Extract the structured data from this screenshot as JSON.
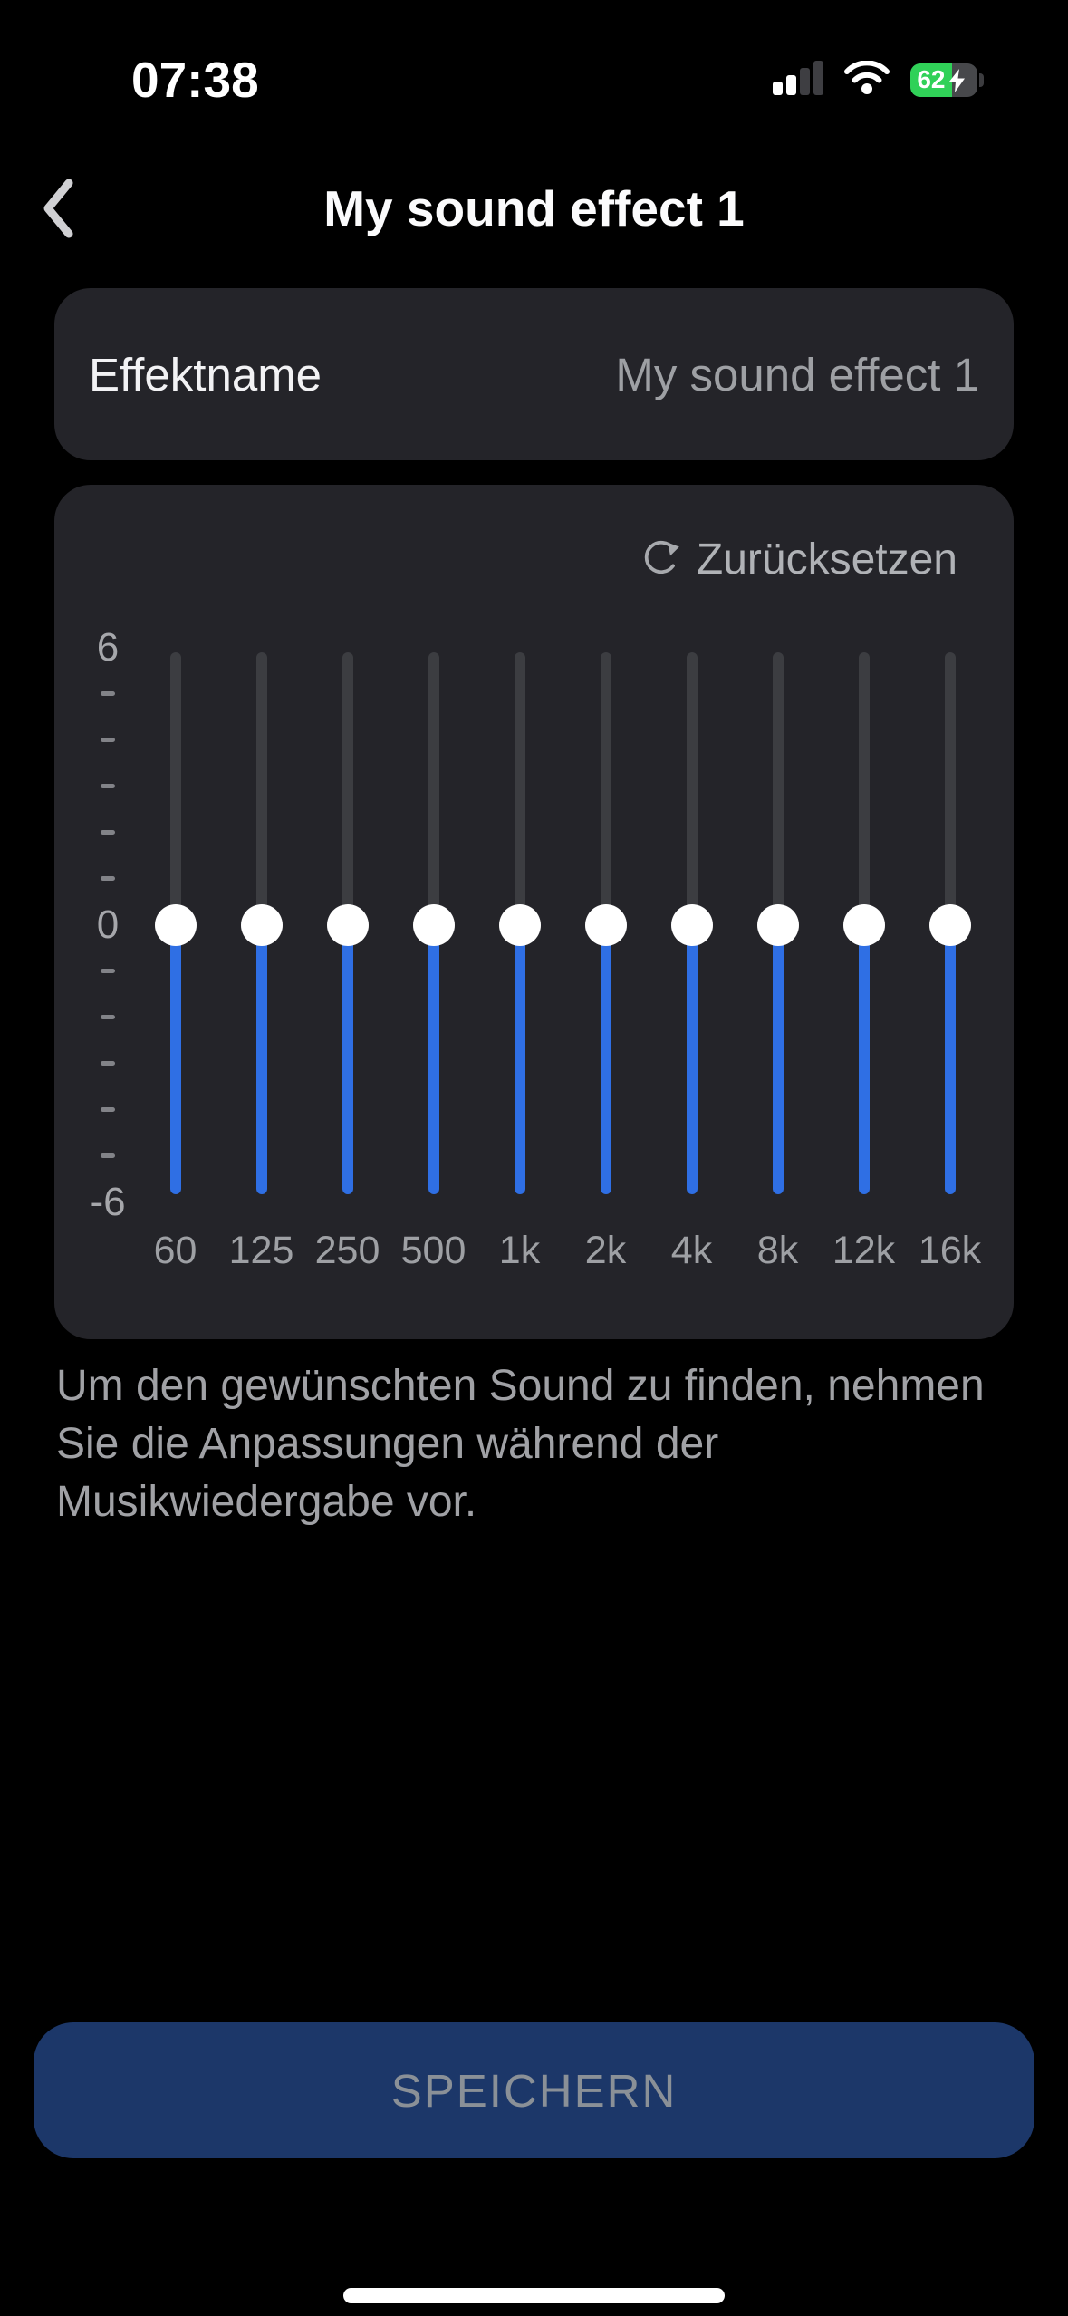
{
  "status_bar": {
    "time": "07:38",
    "signal_bars_active": 2,
    "signal_bars_total": 4,
    "wifi": "full",
    "battery_percent": "62",
    "battery_charging": true
  },
  "header": {
    "title": "My sound effect 1"
  },
  "effect_name_row": {
    "label": "Effektname",
    "value": "My sound effect 1"
  },
  "equalizer": {
    "reset_label": "Zurücksetzen",
    "scale": {
      "max_label": "6",
      "mid_label": "0",
      "min_label": "-6",
      "max": 6,
      "min": -6
    },
    "bands": [
      {
        "freq": "60",
        "value": 0
      },
      {
        "freq": "125",
        "value": 0
      },
      {
        "freq": "250",
        "value": 0
      },
      {
        "freq": "500",
        "value": 0
      },
      {
        "freq": "1k",
        "value": 0
      },
      {
        "freq": "2k",
        "value": 0
      },
      {
        "freq": "4k",
        "value": 0
      },
      {
        "freq": "8k",
        "value": 0
      },
      {
        "freq": "12k",
        "value": 0
      },
      {
        "freq": "16k",
        "value": 0
      }
    ]
  },
  "description": "Um den gewünschten Sound zu finden, nehmen Sie die Anpassungen während der Musikwiedergabe vor.",
  "save_button": {
    "label": "SPEICHERN",
    "enabled": false
  },
  "colors": {
    "background": "#000000",
    "card": "#242429",
    "slider_active": "#2f6fe4",
    "slider_inactive": "#3c3d41",
    "battery_green": "#30d158",
    "save_button_bg": "#1c3769",
    "save_button_text": "#8a9097",
    "secondary_text": "#9ea0a4"
  }
}
